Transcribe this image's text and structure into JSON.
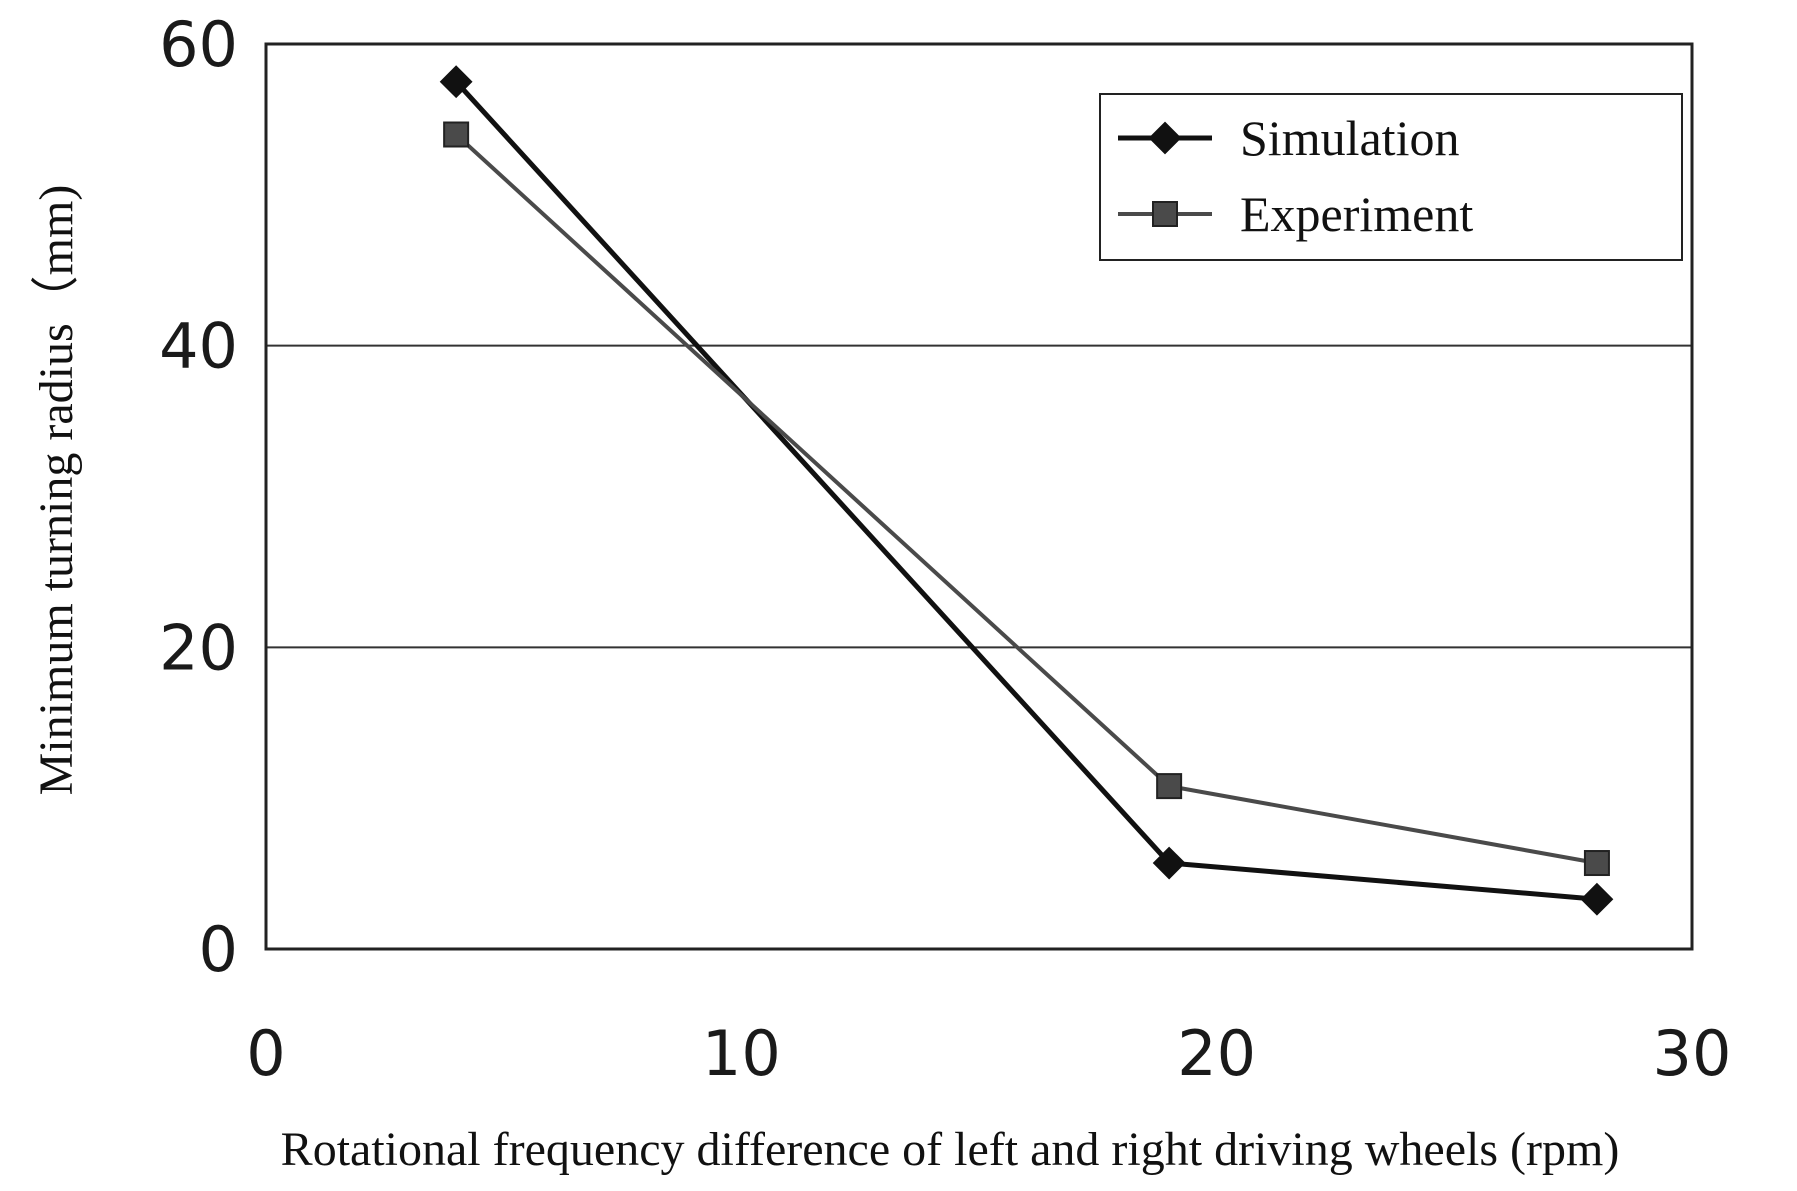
{
  "chart_data": {
    "type": "line",
    "title": "",
    "xlabel": "Rotational frequency difference of left and right driving wheels (rpm)",
    "ylabel": "Minimum turning radius（mm)",
    "xlim": [
      0,
      30
    ],
    "ylim": [
      0,
      60
    ],
    "xticks": [
      0,
      10,
      20,
      30
    ],
    "yticks": [
      0,
      20,
      40,
      60
    ],
    "grid": "horizontal",
    "legend_position": "top-right",
    "series": [
      {
        "name": "Simulation",
        "marker": "diamond",
        "color": "#111111",
        "x": [
          4,
          19,
          28
        ],
        "y": [
          57.5,
          5.7,
          3.3
        ]
      },
      {
        "name": "Experiment",
        "marker": "square",
        "color": "#4a4a4a",
        "x": [
          4,
          19,
          28
        ],
        "y": [
          54,
          10.8,
          5.7
        ]
      }
    ]
  }
}
